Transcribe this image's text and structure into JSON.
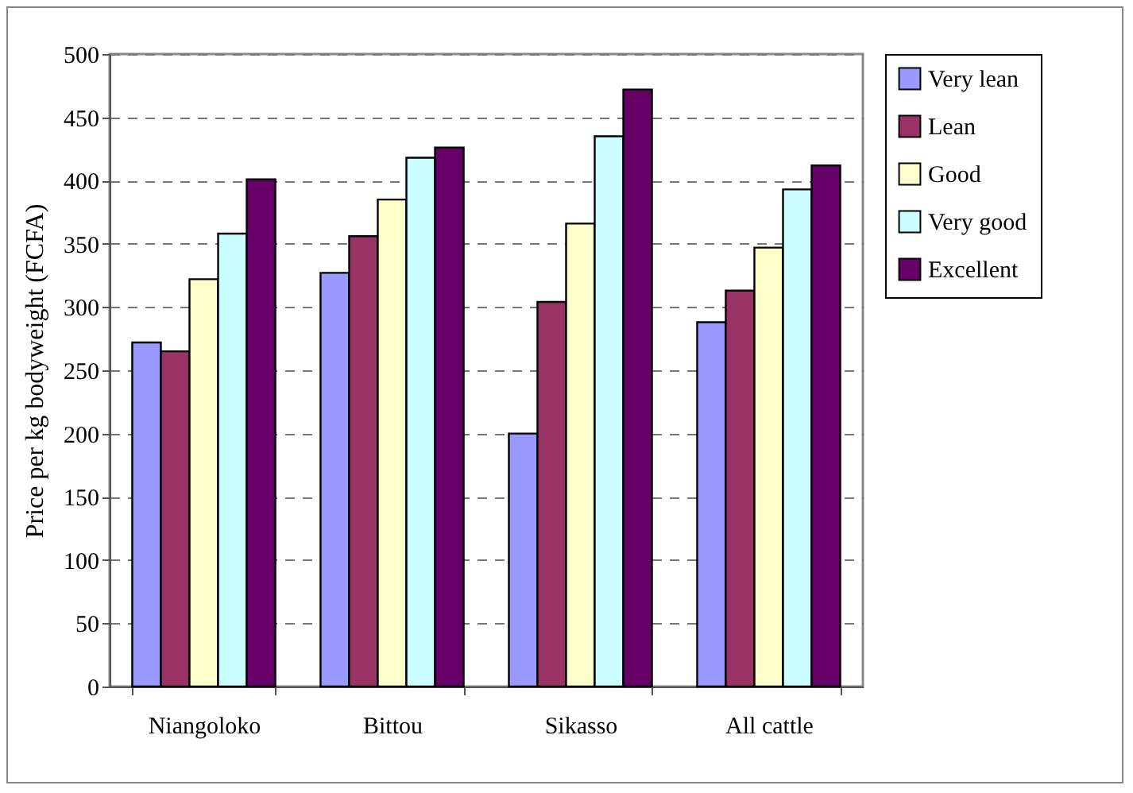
{
  "chart_data": {
    "type": "bar",
    "ylabel": "Price per kg bodyweight (FCFA)",
    "categories": [
      "Niangoloko",
      "Bittou",
      "Sikasso",
      "All cattle"
    ],
    "series": [
      {
        "name": "Very lean",
        "color": "#9999ff",
        "values": [
          272,
          327,
          200,
          288
        ]
      },
      {
        "name": "Lean",
        "color": "#993366",
        "values": [
          265,
          356,
          304,
          313
        ]
      },
      {
        "name": "Good",
        "color": "#ffffcc",
        "values": [
          322,
          385,
          366,
          347
        ]
      },
      {
        "name": "Very good",
        "color": "#ccffff",
        "values": [
          358,
          418,
          435,
          393
        ]
      },
      {
        "name": "Excellent",
        "color": "#660066",
        "values": [
          401,
          426,
          472,
          412
        ]
      }
    ],
    "ylim": [
      0,
      500
    ],
    "yticks": [
      0,
      50,
      100,
      150,
      200,
      250,
      300,
      350,
      400,
      450,
      500
    ],
    "grid": "y",
    "legend": "right"
  }
}
